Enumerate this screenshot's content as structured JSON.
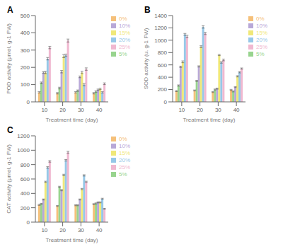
{
  "chart_data": [
    {
      "type": "bar",
      "title": "A",
      "x_label": "Treatment time (day)",
      "y_label": "POD activity (μmol. g-1 FW)",
      "categories": [
        "10",
        "20",
        "30",
        "40"
      ],
      "series": [
        {
          "name": "0%",
          "color": "#F5C07A",
          "values": [
            55,
            50,
            55,
            50
          ],
          "errors": [
            4,
            4,
            4,
            4
          ]
        },
        {
          "name": "5%",
          "color": "#98D48E",
          "values": [
            110,
            80,
            65,
            60
          ],
          "errors": [
            5,
            5,
            4,
            4
          ]
        },
        {
          "name": "10%",
          "color": "#B8A8D8",
          "values": [
            170,
            175,
            145,
            70
          ],
          "errors": [
            5,
            7,
            5,
            4
          ]
        },
        {
          "name": "15%",
          "color": "#F0E878",
          "values": [
            170,
            265,
            170,
            75
          ],
          "errors": [
            7,
            9,
            7,
            4
          ]
        },
        {
          "name": "20%",
          "color": "#96C8E8",
          "values": [
            250,
            270,
            100,
            55
          ],
          "errors": [
            7,
            7,
            7,
            4
          ]
        },
        {
          "name": "25%",
          "color": "#F0B8D0",
          "values": [
            315,
            355,
            190,
            105
          ],
          "errors": [
            7,
            9,
            7,
            5
          ]
        }
      ],
      "ylim": [
        0,
        500
      ],
      "yticks": [
        0,
        100,
        200,
        300,
        400,
        500
      ],
      "legend": "upper right",
      "grid": false
    },
    {
      "type": "bar",
      "title": "B",
      "x_label": "Treatment time (day)",
      "y_label": "SOD activity (u. g-1 FW)",
      "categories": [
        "10",
        "20",
        "30",
        "40"
      ],
      "series": [
        {
          "name": "0%",
          "color": "#F5C07A",
          "values": [
            175,
            185,
            160,
            195
          ],
          "errors": [
            8,
            8,
            8,
            8
          ]
        },
        {
          "name": "5%",
          "color": "#98D48E",
          "values": [
            265,
            340,
            200,
            170
          ],
          "errors": [
            10,
            10,
            8,
            8
          ]
        },
        {
          "name": "10%",
          "color": "#B8A8D8",
          "values": [
            570,
            575,
            215,
            240
          ],
          "errors": [
            10,
            10,
            8,
            8
          ]
        },
        {
          "name": "15%",
          "color": "#F0E878",
          "values": [
            650,
            895,
            760,
            415
          ],
          "errors": [
            15,
            15,
            10,
            10
          ]
        },
        {
          "name": "20%",
          "color": "#96C8E8",
          "values": [
            1095,
            1215,
            640,
            480
          ],
          "errors": [
            15,
            20,
            12,
            10
          ]
        },
        {
          "name": "25%",
          "color": "#F0B8D0",
          "values": [
            1060,
            1110,
            680,
            540
          ],
          "errors": [
            20,
            18,
            14,
            10
          ]
        }
      ],
      "ylim": [
        0,
        1400
      ],
      "yticks": [
        0,
        200,
        400,
        600,
        800,
        1000,
        1200,
        1400
      ],
      "legend": "upper right",
      "grid": false
    },
    {
      "type": "bar",
      "title": "C",
      "x_label": "Treatment time (day)",
      "y_label": "CAT activity (μmol. g-1 FW)",
      "categories": [
        "10",
        "20",
        "30",
        "40"
      ],
      "series": [
        {
          "name": "0%",
          "color": "#F5C07A",
          "values": [
            240,
            225,
            235,
            250
          ],
          "errors": [
            7,
            7,
            7,
            7
          ]
        },
        {
          "name": "5%",
          "color": "#98D48E",
          "values": [
            255,
            490,
            235,
            260
          ],
          "errors": [
            7,
            9,
            7,
            7
          ]
        },
        {
          "name": "10%",
          "color": "#B8A8D8",
          "values": [
            315,
            445,
            315,
            275
          ],
          "errors": [
            7,
            9,
            7,
            7
          ]
        },
        {
          "name": "15%",
          "color": "#F0E878",
          "values": [
            560,
            655,
            460,
            275
          ],
          "errors": [
            9,
            11,
            9,
            7
          ]
        },
        {
          "name": "20%",
          "color": "#96C8E8",
          "values": [
            760,
            860,
            650,
            325
          ],
          "errors": [
            11,
            11,
            9,
            7
          ]
        },
        {
          "name": "25%",
          "color": "#F0B8D0",
          "values": [
            845,
            970,
            560,
            185
          ],
          "errors": [
            11,
            14,
            9,
            7
          ]
        }
      ],
      "ylim": [
        0,
        1200
      ],
      "yticks": [
        0,
        200,
        400,
        600,
        800,
        1000,
        1200
      ],
      "legend": "upper right",
      "grid": false
    }
  ]
}
